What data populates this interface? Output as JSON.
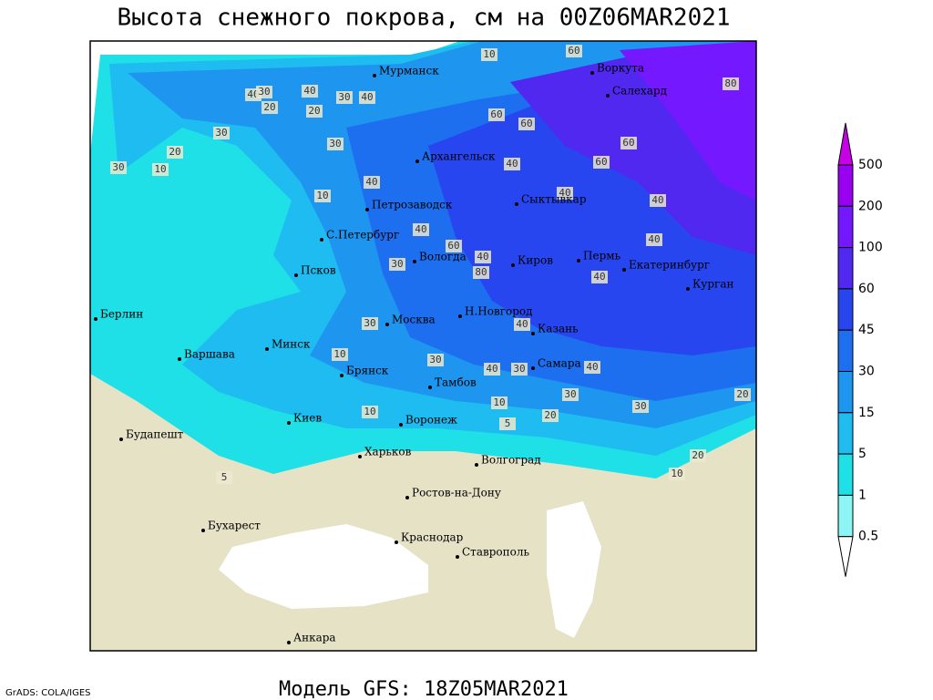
{
  "title": "Высота снежного покрова, см на 00Z06MAR2021",
  "footer": "Модель GFS: 18Z05MAR2021",
  "credit": "GrADS: COLA/IGES",
  "colorbar": {
    "levels": [
      500,
      200,
      100,
      60,
      45,
      30,
      15,
      5,
      1,
      0.5
    ],
    "colors": [
      "#c800e8",
      "#9a00f0",
      "#7418ff",
      "#5028f0",
      "#2846f0",
      "#1e6ef0",
      "#1e96f0",
      "#1ebcf0",
      "#1ee0e6",
      "#8ef5f5",
      "#ffffff"
    ]
  },
  "cities": [
    "Мурманск",
    "Воркута",
    "Салехард",
    "Архангельск",
    "Петрозаводск",
    "Сыктывкар",
    "С.Петербург",
    "Вологда",
    "Киров",
    "Пермь",
    "Екатеринбург",
    "Курган",
    "Псков",
    "Берлин",
    "Н.Новгород",
    "Казань",
    "Москва",
    "Минск",
    "Варшава",
    "Брянск",
    "Тамбов",
    "Самара",
    "Киев",
    "Воронеж",
    "Будапешт",
    "Харьков",
    "Волгоград",
    "Ростов-на-Дону",
    "Бухарест",
    "Краснодар",
    "Ставрополь",
    "Анкара"
  ],
  "contour_labels": [
    10,
    60,
    40,
    30,
    40,
    30,
    40,
    20,
    20,
    30,
    10,
    30,
    20,
    30,
    40,
    10,
    60,
    60,
    80,
    60,
    60,
    40,
    40,
    30,
    40,
    40,
    60,
    80,
    40,
    40,
    30,
    40,
    10,
    40,
    30,
    40,
    30,
    10,
    10,
    5,
    20,
    30,
    40,
    30,
    20,
    10,
    5,
    20
  ]
}
